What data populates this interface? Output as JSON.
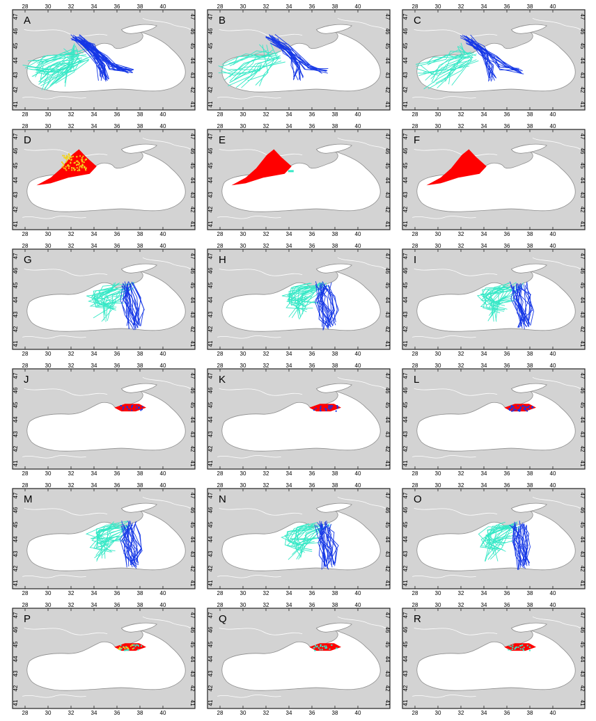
{
  "figure": {
    "colors": {
      "land": "#d3d3d3",
      "sea": "#ffffff",
      "coast": "#8c8c8c",
      "frame": "#222222",
      "cyan_tracks": "#35e8c6",
      "blue_tracks": "#1537e6",
      "red_area": "#ff0000",
      "yellow_dots": "#f2d21c"
    },
    "longitude_ticks": [
      "28",
      "30",
      "32",
      "34",
      "36",
      "38",
      "40"
    ],
    "latitude_ticks": [
      "41",
      "42",
      "43",
      "44",
      "45",
      "46",
      "47"
    ],
    "panels": [
      {
        "letter": "A",
        "kind": "tracks",
        "region": "west",
        "pattern": "dense",
        "top_lon_labels": [
          "28",
          "30",
          "32",
          "34",
          "36",
          "38",
          "40"
        ],
        "bottom_lon_labels": [
          "28",
          "30",
          "32",
          "34",
          "36",
          "38",
          "40"
        ]
      },
      {
        "letter": "B",
        "kind": "tracks",
        "region": "west",
        "pattern": "few",
        "top_lon_labels": [
          "28",
          "30",
          "32",
          "34",
          "36",
          "38",
          "40"
        ],
        "bottom_lon_labels": [
          "28",
          "30",
          "32",
          "34",
          "36",
          "38",
          "40"
        ]
      },
      {
        "letter": "C",
        "kind": "tracks",
        "region": "west",
        "pattern": "thin",
        "top_lon_labels": [
          "28",
          "30",
          "32",
          "34",
          "36",
          "38",
          "40"
        ],
        "bottom_lon_labels": [
          "28",
          "30",
          "32",
          "34",
          "36",
          "38",
          "40"
        ]
      },
      {
        "letter": "D",
        "kind": "area",
        "region": "west",
        "pattern": "dots",
        "top_lon_labels": [
          "28",
          "30",
          "32",
          "34",
          "36",
          "38",
          "40"
        ],
        "bottom_lon_labels": [
          "28",
          "30",
          "32",
          "34",
          "36",
          "38",
          "40"
        ]
      },
      {
        "letter": "E",
        "kind": "area",
        "region": "west",
        "pattern": "cyan-edge",
        "top_lon_labels": [
          "28",
          "30",
          "32",
          "34",
          "36",
          "38",
          "40"
        ],
        "bottom_lon_labels": [
          "28",
          "30",
          "32",
          "34",
          "36",
          "38",
          "40"
        ]
      },
      {
        "letter": "F",
        "kind": "area",
        "region": "west",
        "pattern": "solid",
        "top_lon_labels": [
          "28",
          "30",
          "32",
          "34",
          "36",
          "38",
          "40"
        ],
        "bottom_lon_labels": [
          "28",
          "30",
          "32",
          "34",
          "36",
          "38",
          "40"
        ]
      },
      {
        "letter": "G",
        "kind": "tracks",
        "region": "crimea",
        "pattern": "loops",
        "top_lon_labels": [
          "28",
          "30",
          "32",
          "34",
          "36",
          "38",
          "40"
        ],
        "bottom_lon_labels": [
          "28",
          "30",
          "32",
          "34",
          "36",
          "38",
          "40"
        ]
      },
      {
        "letter": "H",
        "kind": "tracks",
        "region": "crimea",
        "pattern": "south",
        "top_lon_labels": [
          "28",
          "30",
          "32",
          "34",
          "36",
          "38",
          "40"
        ],
        "bottom_lon_labels": [
          "28",
          "30",
          "32",
          "34",
          "36",
          "38",
          "40"
        ]
      },
      {
        "letter": "I",
        "kind": "tracks",
        "region": "crimea",
        "pattern": "bundle",
        "top_lon_labels": [
          "28",
          "30",
          "32",
          "34",
          "36",
          "38",
          "40"
        ],
        "bottom_lon_labels": [
          "28",
          "30",
          "32",
          "34",
          "36",
          "38",
          "40"
        ]
      },
      {
        "letter": "J",
        "kind": "area",
        "region": "crimea",
        "pattern": "red-blue",
        "top_lon_labels": [
          "28",
          "30",
          "32",
          "34",
          "36",
          "38",
          "40"
        ],
        "bottom_lon_labels": [
          "28",
          "30",
          "32",
          "34",
          "36",
          "38",
          "40"
        ]
      },
      {
        "letter": "K",
        "kind": "area",
        "region": "crimea",
        "pattern": "red-blue",
        "top_lon_labels": [
          "28",
          "30",
          "32",
          "34",
          "36",
          "38",
          "40"
        ],
        "bottom_lon_labels": [
          "28",
          "30",
          "32",
          "34",
          "36",
          "38",
          "40"
        ]
      },
      {
        "letter": "L",
        "kind": "area",
        "region": "crimea",
        "pattern": "blue-heavy",
        "top_lon_labels": [
          "28",
          "30",
          "32",
          "34",
          "36",
          "38",
          "40"
        ],
        "bottom_lon_labels": [
          "28",
          "30",
          "32",
          "34",
          "36",
          "38",
          "40"
        ]
      },
      {
        "letter": "M",
        "kind": "tracks",
        "region": "crimea",
        "pattern": "mid",
        "top_lon_labels": [
          "28",
          "30",
          "32",
          "34",
          "36",
          "38",
          "40"
        ],
        "bottom_lon_labels": [
          "28",
          "30",
          "32",
          "34",
          "36",
          "38",
          "40"
        ]
      },
      {
        "letter": "N",
        "kind": "tracks",
        "region": "crimea",
        "pattern": "wide",
        "top_lon_labels": [
          "28",
          "30",
          "32",
          "34",
          "36",
          "38",
          "40"
        ],
        "bottom_lon_labels": [
          "28",
          "30",
          "32",
          "34",
          "36",
          "38",
          "40"
        ]
      },
      {
        "letter": "O",
        "kind": "tracks",
        "region": "crimea",
        "pattern": "east",
        "top_lon_labels": [
          "28",
          "30",
          "32",
          "34",
          "36",
          "38",
          "40"
        ],
        "bottom_lon_labels": [
          "28",
          "30",
          "32",
          "34",
          "36",
          "38",
          "40"
        ]
      },
      {
        "letter": "P",
        "kind": "area",
        "region": "crimea",
        "pattern": "mixed",
        "top_lon_labels": [
          "28",
          "30",
          "32",
          "34",
          "36",
          "38",
          "40"
        ],
        "bottom_lon_labels": [
          "28",
          "30",
          "32",
          "34",
          "36",
          "38",
          "40"
        ]
      },
      {
        "letter": "Q",
        "kind": "area",
        "region": "crimea",
        "pattern": "cyan-mix",
        "top_lon_labels": [
          "28",
          "30",
          "32",
          "34",
          "36",
          "38",
          "40"
        ],
        "bottom_lon_labels": [
          "28",
          "30",
          "32",
          "34",
          "36",
          "38",
          "40"
        ]
      },
      {
        "letter": "R",
        "kind": "area",
        "region": "crimea",
        "pattern": "red-cyan",
        "top_lon_labels": [
          "28",
          "30",
          "32",
          "34",
          "36",
          "38",
          "40"
        ],
        "bottom_lon_labels": [
          "28",
          "30",
          "32",
          "34",
          "36",
          "38",
          "40"
        ]
      }
    ]
  }
}
